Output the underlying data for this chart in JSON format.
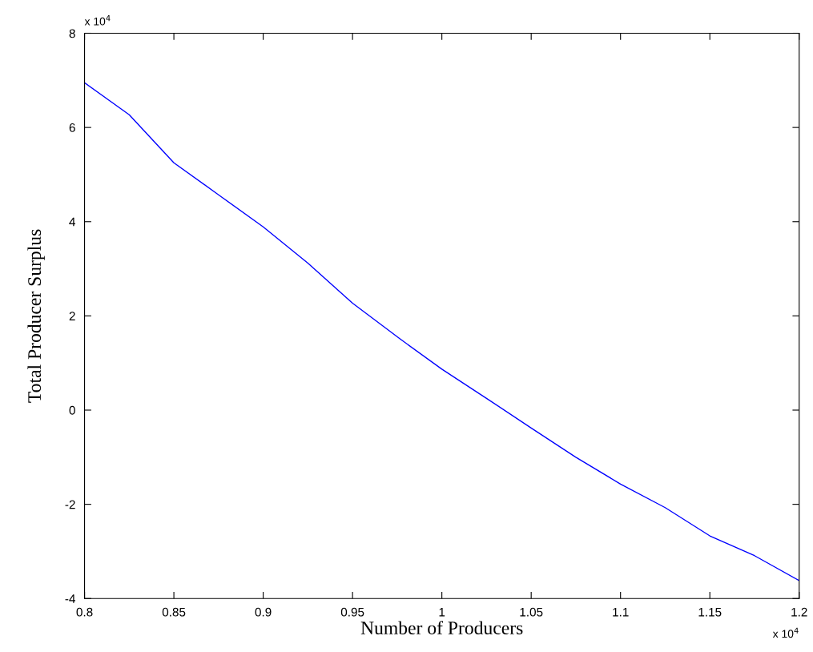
{
  "chart_data": {
    "type": "line",
    "xlabel": "Number of Producers",
    "ylabel": "Total Producer Surplus",
    "annotations": [
      "x 10$^{4}$",
      "x 10$^{4}$"
    ],
    "x": [
      0.8,
      0.825,
      0.85,
      0.875,
      0.9,
      0.925,
      0.95,
      0.977,
      1.0,
      1.025,
      1.05,
      1.075,
      1.1,
      1.125,
      1.15,
      1.175,
      1.2
    ],
    "series": [
      {
        "color": "#0000ff",
        "values": [
          6.95,
          6.27,
          5.25,
          4.57,
          3.89,
          3.12,
          2.27,
          1.5,
          0.87,
          0.25,
          -0.38,
          -1.0,
          -1.57,
          -2.07,
          -2.67,
          -3.09,
          -3.62
        ]
      }
    ],
    "xlim": [
      0.8,
      1.2
    ],
    "xticks": [
      0.8,
      0.85,
      0.9,
      0.95,
      1,
      1.05,
      1.1,
      1.15,
      1.2
    ],
    "ylim": [
      -4,
      8
    ],
    "yticks": [
      -4,
      -2,
      0,
      2,
      4,
      6,
      8
    ],
    "grid": false,
    "marker": "none",
    "line_style": "solid"
  }
}
